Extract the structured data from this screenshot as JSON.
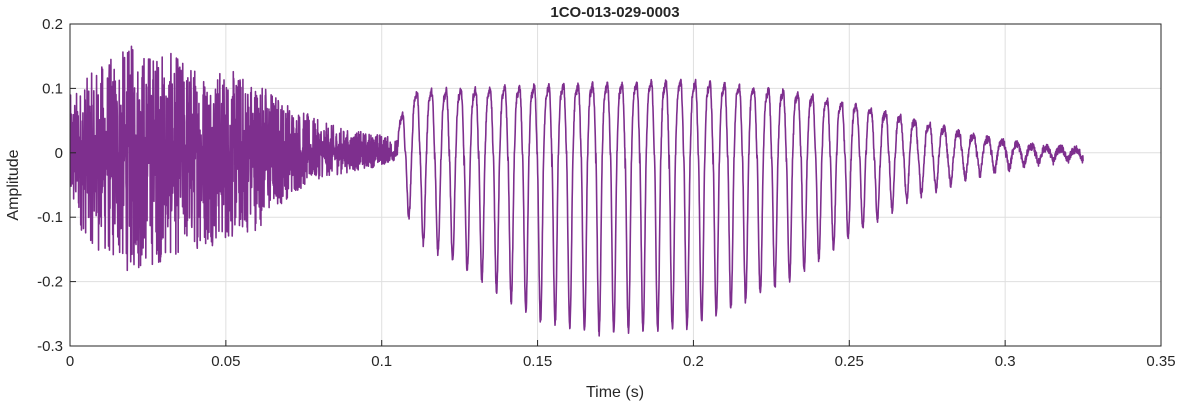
{
  "chart_data": {
    "type": "line",
    "title": "1CO-013-029-0003",
    "xlabel": "Time (s)",
    "ylabel": "Amplitude",
    "xlim": [
      0,
      0.35
    ],
    "ylim": [
      -0.3,
      0.2
    ],
    "grid": true,
    "x_ticks": [
      0,
      0.05,
      0.1,
      0.15,
      0.2,
      0.25,
      0.3,
      0.35
    ],
    "x_tick_labels": [
      "0",
      "0.05",
      "0.1",
      "0.15",
      "0.2",
      "0.25",
      "0.3",
      "0.35"
    ],
    "y_ticks": [
      -0.3,
      -0.2,
      -0.1,
      0,
      0.1,
      0.2
    ],
    "y_tick_labels": [
      "-0.3",
      "-0.2",
      "-0.1",
      "0",
      "0.1",
      "0.2"
    ],
    "line_color": "#7E2F8E",
    "series": [
      {
        "values_description": "",
        "segments": [
          {
            "kind": "noise",
            "x_start": 0.0,
            "x_end": 0.105,
            "env_top": [
              [
                0.0,
                0.09
              ],
              [
                0.01,
                0.14
              ],
              [
                0.02,
                0.17
              ],
              [
                0.03,
                0.16
              ],
              [
                0.04,
                0.14
              ],
              [
                0.05,
                0.13
              ],
              [
                0.06,
                0.12
              ],
              [
                0.07,
                0.08
              ],
              [
                0.08,
                0.05
              ],
              [
                0.09,
                0.035
              ],
              [
                0.1,
                0.03
              ],
              [
                0.105,
                0.02
              ]
            ],
            "env_bottom": [
              [
                0.0,
                -0.1
              ],
              [
                0.01,
                -0.16
              ],
              [
                0.02,
                -0.19
              ],
              [
                0.03,
                -0.17
              ],
              [
                0.04,
                -0.15
              ],
              [
                0.05,
                -0.14
              ],
              [
                0.06,
                -0.12
              ],
              [
                0.07,
                -0.07
              ],
              [
                0.08,
                -0.04
              ],
              [
                0.09,
                -0.03
              ],
              [
                0.1,
                -0.02
              ],
              [
                0.105,
                -0.01
              ]
            ]
          },
          {
            "kind": "periodic",
            "x_start": 0.105,
            "x_end": 0.325,
            "period": 0.0047,
            "env_top": [
              [
                0.105,
                0.05
              ],
              [
                0.11,
                0.11
              ],
              [
                0.15,
                0.12
              ],
              [
                0.2,
                0.13
              ],
              [
                0.23,
                0.11
              ],
              [
                0.25,
                0.09
              ],
              [
                0.27,
                0.06
              ],
              [
                0.29,
                0.03
              ],
              [
                0.31,
                0.01
              ],
              [
                0.325,
                0.005
              ]
            ],
            "env_bottom": [
              [
                0.105,
                -0.02
              ],
              [
                0.11,
                -0.13
              ],
              [
                0.13,
                -0.19
              ],
              [
                0.15,
                -0.26
              ],
              [
                0.17,
                -0.28
              ],
              [
                0.2,
                -0.27
              ],
              [
                0.23,
                -0.2
              ],
              [
                0.25,
                -0.13
              ],
              [
                0.27,
                -0.07
              ],
              [
                0.29,
                -0.035
              ],
              [
                0.31,
                -0.015
              ],
              [
                0.325,
                -0.01
              ]
            ]
          }
        ]
      }
    ]
  }
}
